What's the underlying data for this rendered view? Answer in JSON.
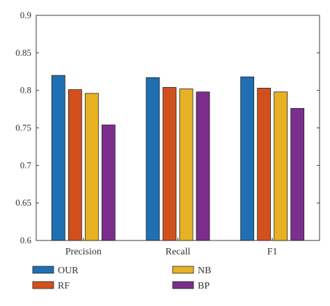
{
  "chart_data": {
    "type": "bar",
    "categories": [
      "Precision",
      "Recall",
      "F1"
    ],
    "series": [
      {
        "name": "OUR",
        "values": [
          0.82,
          0.817,
          0.818
        ],
        "color": "#1f70b3"
      },
      {
        "name": "RF",
        "values": [
          0.801,
          0.804,
          0.803
        ],
        "color": "#d2501d"
      },
      {
        "name": "NB",
        "values": [
          0.796,
          0.802,
          0.798
        ],
        "color": "#e6b224"
      },
      {
        "name": "BP",
        "values": [
          0.754,
          0.798,
          0.776
        ],
        "color": "#7b2e8c"
      }
    ],
    "ylim": [
      0.6,
      0.9
    ],
    "yticks": [
      "0.6",
      "0.65",
      "0.7",
      "0.75",
      "0.8",
      "0.85",
      "0.9"
    ],
    "grid": false,
    "legend_placement": "bottom"
  }
}
